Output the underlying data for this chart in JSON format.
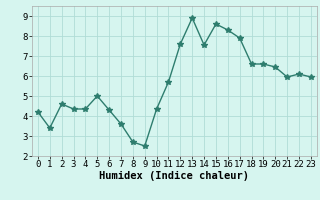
{
  "x": [
    0,
    1,
    2,
    3,
    4,
    5,
    6,
    7,
    8,
    9,
    10,
    11,
    12,
    13,
    14,
    15,
    16,
    17,
    18,
    19,
    20,
    21,
    22,
    23
  ],
  "y": [
    4.2,
    3.4,
    4.6,
    4.35,
    4.35,
    5.0,
    4.3,
    3.6,
    2.7,
    2.5,
    4.35,
    5.7,
    7.6,
    8.9,
    7.55,
    8.6,
    8.3,
    7.9,
    6.6,
    6.6,
    6.45,
    5.95,
    6.1,
    5.95
  ],
  "line_color": "#2e7d6e",
  "marker": "*",
  "marker_size": 4,
  "bg_color": "#d6f5ef",
  "grid_color": "#b0ddd6",
  "xlabel": "Humidex (Indice chaleur)",
  "xlim": [
    -0.5,
    23.5
  ],
  "ylim": [
    2,
    9.5
  ],
  "yticks": [
    2,
    3,
    4,
    5,
    6,
    7,
    8,
    9
  ],
  "xticks": [
    0,
    1,
    2,
    3,
    4,
    5,
    6,
    7,
    8,
    9,
    10,
    11,
    12,
    13,
    14,
    15,
    16,
    17,
    18,
    19,
    20,
    21,
    22,
    23
  ],
  "xlabel_fontsize": 7.5,
  "tick_fontsize": 6.5,
  "line_width": 1.0
}
